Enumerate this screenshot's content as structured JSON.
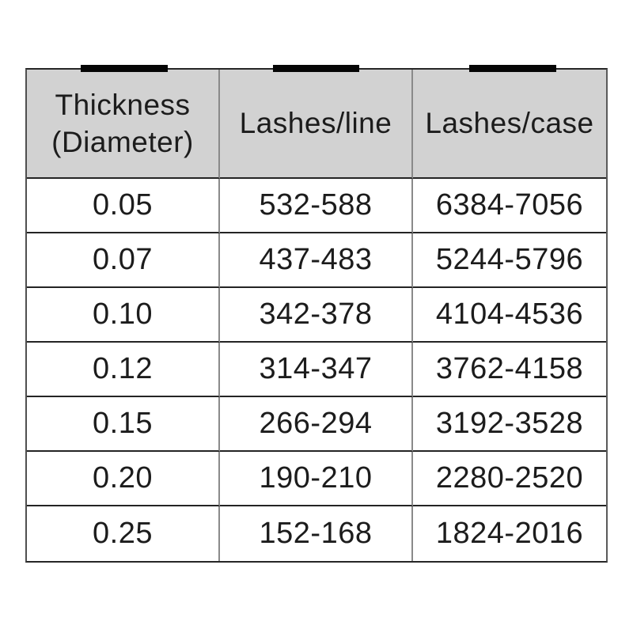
{
  "colors": {
    "header_bg": "#d2d2d2",
    "text": "#1c1c1c",
    "grid_horizontal": "#242424",
    "grid_vertical": "#8a8a8a",
    "tape": "#060606",
    "page_bg": "#ffffff"
  },
  "table": {
    "header": {
      "col1_lines": [
        "Thickness",
        "(Diameter)"
      ],
      "col2": "Lashes/line",
      "col3": "Lashes/case"
    }
  },
  "chart_data": {
    "type": "table",
    "title": "",
    "columns": [
      "Thickness (Diameter)",
      "Lashes/line",
      "Lashes/case"
    ],
    "rows": [
      [
        "0.05",
        "532-588",
        "6384-7056"
      ],
      [
        "0.07",
        "437-483",
        "5244-5796"
      ],
      [
        "0.10",
        "342-378",
        "4104-4536"
      ],
      [
        "0.12",
        "314-347",
        "3762-4158"
      ],
      [
        "0.15",
        "266-294",
        "3192-3528"
      ],
      [
        "0.20",
        "190-210",
        "2280-2520"
      ],
      [
        "0.25",
        "152-168",
        "1824-2016"
      ]
    ]
  }
}
